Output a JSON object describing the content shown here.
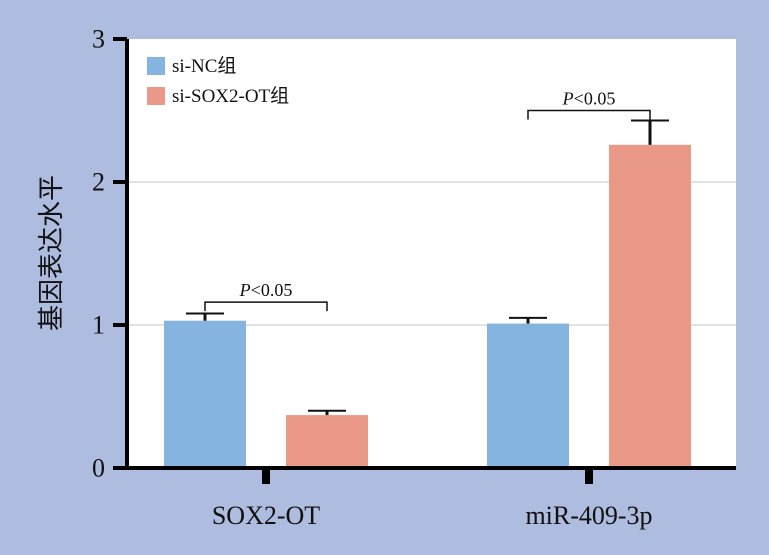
{
  "chart_data": {
    "type": "bar",
    "title": "",
    "xlabel": "",
    "ylabel": "基因表达水平",
    "ylim": [
      0,
      3
    ],
    "yticks": [
      "0",
      "1",
      "2",
      "3"
    ],
    "grid": true,
    "legend_position": "top-left",
    "categories": [
      "SOX2-OT",
      "miR-409-3p"
    ],
    "series": [
      {
        "name": "si-NC组",
        "color": "#85b4e1",
        "values": [
          1.03,
          1.01
        ],
        "errors": [
          0.05,
          0.04
        ]
      },
      {
        "name": "si-SOX2-OT组",
        "color": "#ea9888",
        "values": [
          0.37,
          2.26
        ],
        "errors": [
          0.03,
          0.17
        ]
      }
    ],
    "annotations": [
      {
        "category": 0,
        "text_italic": "P",
        "text_rest": "<0.05",
        "bracket_y": 1.16
      },
      {
        "category": 1,
        "text_italic": "P",
        "text_rest": "<0.05",
        "bracket_y": 2.5
      }
    ]
  }
}
